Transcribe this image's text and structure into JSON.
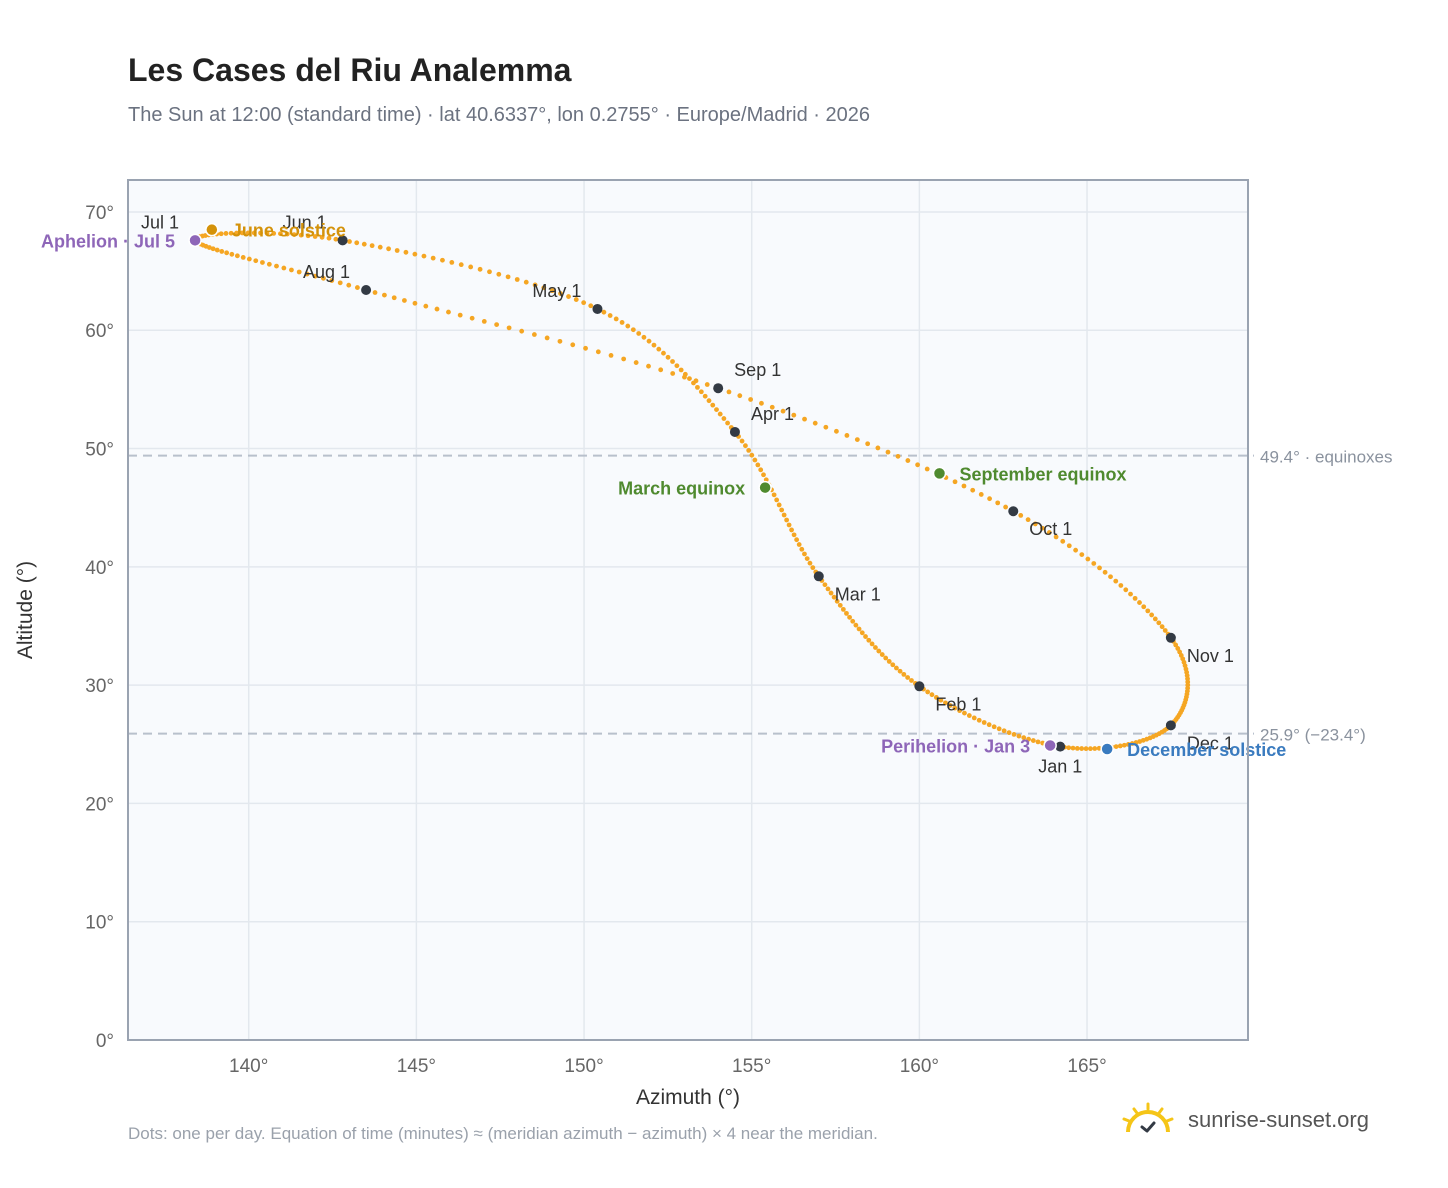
{
  "title": "Les Cases del Riu Analemma",
  "subtitle": "The Sun at 12:00 (standard time) · lat 40.6337°, lon 0.2755° · Europe/Madrid · 2026",
  "footnote": "Dots: one per day. Equation of time (minutes) ≈ (meridian azimuth − azimuth) × 4 near the meridian.",
  "brand": "sunrise-sunset.org",
  "colors": {
    "curve": "#f5a623",
    "month_dot": "#333a44",
    "solstice_june": "#d4920a",
    "solstice_december": "#3a7bbf",
    "equinox": "#4f8a2f",
    "apsis": "#8e66b8",
    "plot_bg": "#f8fafd",
    "grid": "#e3e8ee",
    "reference_line": "#b8c0cc"
  },
  "icons": {
    "brand": "sun-logo-icon"
  },
  "chart_data": {
    "type": "scatter",
    "xlabel": "Azimuth (°)",
    "ylabel": "Altitude (°)",
    "xlim": [
      136.4,
      169.8
    ],
    "ylim": [
      0,
      72.7
    ],
    "x_ticks": [
      "140°",
      "145°",
      "150°",
      "155°",
      "160°",
      "165°"
    ],
    "x_tick_values": [
      140,
      145,
      150,
      155,
      160,
      165
    ],
    "y_ticks": [
      "0°",
      "10°",
      "20°",
      "30°",
      "40°",
      "50°",
      "60°",
      "70°"
    ],
    "y_tick_values": [
      0,
      10,
      20,
      30,
      40,
      50,
      60,
      70
    ],
    "grid": true,
    "points_per_year": 365,
    "curve_points": [
      {
        "date": "Jan 1",
        "azimuth": 164.2,
        "altitude": 24.8
      },
      {
        "date": "Feb 1",
        "azimuth": 160.0,
        "altitude": 29.9
      },
      {
        "date": "Mar 1",
        "azimuth": 157.0,
        "altitude": 39.2
      },
      {
        "date": "Apr 1",
        "azimuth": 154.5,
        "altitude": 51.4
      },
      {
        "date": "May 1",
        "azimuth": 150.4,
        "altitude": 61.8
      },
      {
        "date": "Jun 1",
        "azimuth": 142.8,
        "altitude": 67.6
      },
      {
        "date": "Jul 1",
        "azimuth": 138.4,
        "altitude": 67.6
      },
      {
        "date": "Aug 1",
        "azimuth": 143.5,
        "altitude": 63.4
      },
      {
        "date": "Sep 1",
        "azimuth": 154.0,
        "altitude": 55.1
      },
      {
        "date": "Oct 1",
        "azimuth": 162.8,
        "altitude": 44.7
      },
      {
        "date": "Nov 1",
        "azimuth": 167.5,
        "altitude": 34.0
      },
      {
        "date": "Dec 1",
        "azimuth": 167.5,
        "altitude": 26.6
      }
    ],
    "month_markers": [
      {
        "label": "Jan 1",
        "azimuth": 164.2,
        "altitude": 24.8,
        "anchor": "below"
      },
      {
        "label": "Feb 1",
        "azimuth": 160.0,
        "altitude": 29.9,
        "anchor": "below-right"
      },
      {
        "label": "Mar 1",
        "azimuth": 157.0,
        "altitude": 39.2,
        "anchor": "below-right"
      },
      {
        "label": "Apr 1",
        "azimuth": 154.5,
        "altitude": 51.4,
        "anchor": "above-right"
      },
      {
        "label": "May 1",
        "azimuth": 150.4,
        "altitude": 61.8,
        "anchor": "above-left"
      },
      {
        "label": "Jun 1",
        "azimuth": 142.8,
        "altitude": 67.6,
        "anchor": "above-left"
      },
      {
        "label": "Jul 1",
        "azimuth": 138.4,
        "altitude": 67.6,
        "anchor": "above-left"
      },
      {
        "label": "Aug 1",
        "azimuth": 143.5,
        "altitude": 63.4,
        "anchor": "above-left"
      },
      {
        "label": "Sep 1",
        "azimuth": 154.0,
        "altitude": 55.1,
        "anchor": "above-right"
      },
      {
        "label": "Oct 1",
        "azimuth": 162.8,
        "altitude": 44.7,
        "anchor": "below-right"
      },
      {
        "label": "Nov 1",
        "azimuth": 167.5,
        "altitude": 34.0,
        "anchor": "below-right"
      },
      {
        "label": "Dec 1",
        "azimuth": 167.5,
        "altitude": 26.6,
        "anchor": "below-right"
      }
    ],
    "events": [
      {
        "label": "June solstice",
        "azimuth": 138.9,
        "altitude": 68.5,
        "color_key": "solstice_june",
        "anchor": "right"
      },
      {
        "label": "Aphelion · Jul 5",
        "azimuth": 138.4,
        "altitude": 67.6,
        "color_key": "apsis",
        "anchor": "left"
      },
      {
        "label": "March equinox",
        "azimuth": 155.4,
        "altitude": 46.7,
        "color_key": "equinox",
        "anchor": "left"
      },
      {
        "label": "September equinox",
        "azimuth": 160.6,
        "altitude": 47.9,
        "color_key": "equinox",
        "anchor": "right"
      },
      {
        "label": "Perihelion · Jan 3",
        "azimuth": 163.9,
        "altitude": 24.9,
        "color_key": "apsis",
        "anchor": "left"
      },
      {
        "label": "December solstice",
        "azimuth": 165.6,
        "altitude": 24.6,
        "color_key": "solstice_december",
        "anchor": "right"
      }
    ],
    "reference_lines": [
      {
        "altitude": 49.4,
        "label": "49.4° · equinoxes"
      },
      {
        "altitude": 25.9,
        "label": "25.9° (−23.4°)"
      }
    ]
  }
}
